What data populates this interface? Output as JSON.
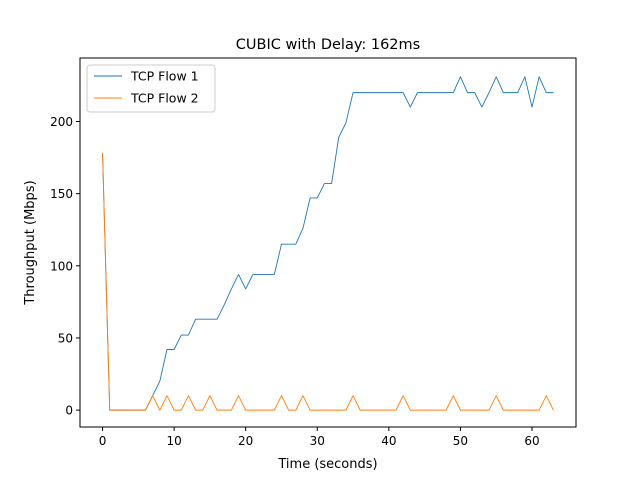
{
  "chart_data": {
    "type": "line",
    "title": "CUBIC with Delay: 162ms",
    "xlabel": "Time (seconds)",
    "ylabel": "Throughput (Mbps)",
    "xlim": [
      -3.15,
      66.15
    ],
    "ylim": [
      -11.7,
      244.0
    ],
    "xticks": [
      0,
      10,
      20,
      30,
      40,
      50,
      60
    ],
    "yticks": [
      0,
      50,
      100,
      150,
      200
    ],
    "grid": false,
    "legend_position": "top-left",
    "series": [
      {
        "name": "TCP Flow 1",
        "color": "#1f77b4",
        "x": [
          0,
          1,
          2,
          3,
          4,
          5,
          6,
          7,
          8,
          9,
          10,
          11,
          12,
          13,
          14,
          15,
          16,
          17,
          18,
          19,
          20,
          21,
          22,
          23,
          24,
          25,
          26,
          27,
          28,
          29,
          30,
          31,
          32,
          33,
          34,
          35,
          36,
          37,
          38,
          39,
          40,
          41,
          42,
          43,
          44,
          45,
          46,
          47,
          48,
          49,
          50,
          51,
          52,
          53,
          54,
          55,
          56,
          57,
          58,
          59,
          60,
          61,
          62,
          63
        ],
        "y": [
          178,
          0,
          0,
          0,
          0,
          0,
          0,
          10,
          20,
          42,
          42,
          52,
          52,
          63,
          63,
          63,
          63,
          73,
          84,
          94,
          84,
          94,
          94,
          94,
          94,
          115,
          115,
          115,
          126,
          147,
          147,
          157,
          157,
          189,
          199,
          220,
          220,
          220,
          220,
          220,
          220,
          220,
          220,
          210,
          220,
          220,
          220,
          220,
          220,
          220,
          231,
          220,
          220,
          210,
          220,
          231,
          220,
          220,
          220,
          231,
          210,
          231,
          220,
          220
        ]
      },
      {
        "name": "TCP Flow 2",
        "color": "#ff7f0e",
        "x": [
          0,
          1,
          2,
          3,
          4,
          5,
          6,
          7,
          8,
          9,
          10,
          11,
          12,
          13,
          14,
          15,
          16,
          17,
          18,
          19,
          20,
          21,
          22,
          23,
          24,
          25,
          26,
          27,
          28,
          29,
          30,
          31,
          32,
          33,
          34,
          35,
          36,
          37,
          38,
          39,
          40,
          41,
          42,
          43,
          44,
          45,
          46,
          47,
          48,
          49,
          50,
          51,
          52,
          53,
          54,
          55,
          56,
          57,
          58,
          59,
          60,
          61,
          62,
          63
        ],
        "y": [
          178,
          0,
          0,
          0,
          0,
          0,
          0,
          10,
          0,
          10,
          0,
          0,
          10,
          0,
          0,
          10,
          0,
          0,
          0,
          10,
          0,
          0,
          0,
          0,
          0,
          10,
          0,
          0,
          10,
          0,
          0,
          0,
          0,
          0,
          0,
          10,
          0,
          0,
          0,
          0,
          0,
          0,
          10,
          0,
          0,
          0,
          0,
          0,
          0,
          10,
          0,
          0,
          0,
          0,
          0,
          10,
          0,
          0,
          0,
          0,
          0,
          0,
          10,
          0
        ]
      }
    ]
  }
}
